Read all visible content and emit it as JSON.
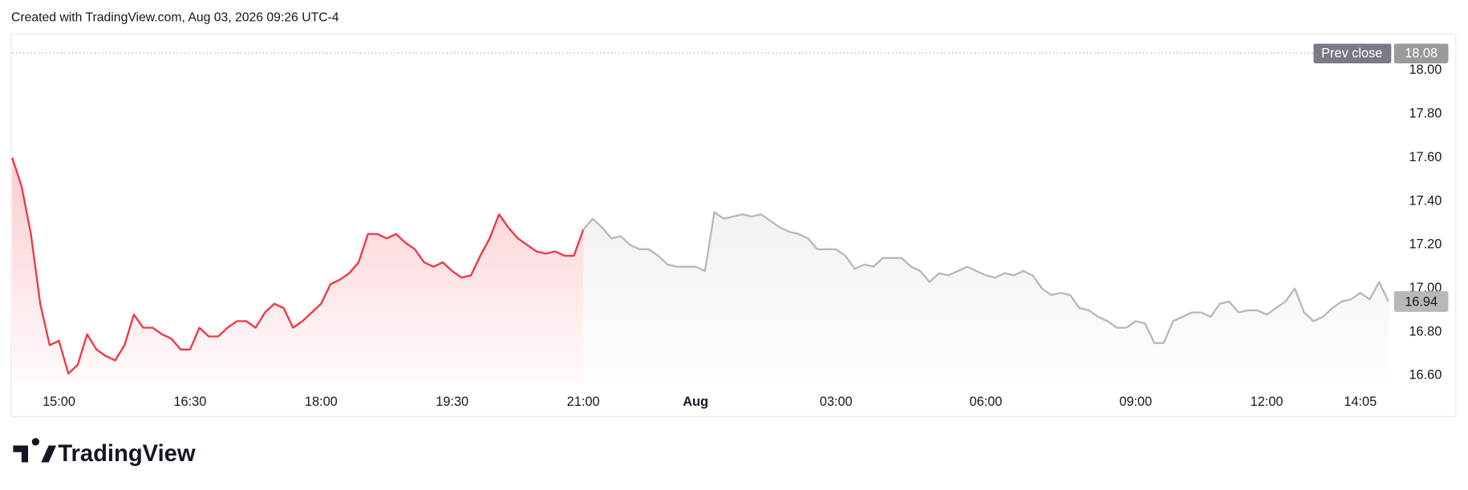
{
  "header": {
    "text": "Created with TradingView.com, Aug 03, 2026 09:26 UTC-4"
  },
  "footer": {
    "brand": "TradingView"
  },
  "chart_data": {
    "type": "line",
    "categories": [
      null,
      null,
      null,
      null,
      null,
      "15:00",
      null,
      null,
      null,
      null,
      null,
      null,
      null,
      null,
      null,
      null,
      null,
      null,
      null,
      "16:30",
      null,
      null,
      null,
      null,
      null,
      null,
      null,
      null,
      null,
      null,
      null,
      null,
      null,
      "18:00",
      null,
      null,
      null,
      null,
      null,
      null,
      null,
      null,
      null,
      null,
      null,
      null,
      null,
      "19:30",
      null,
      null,
      null,
      null,
      null,
      null,
      null,
      null,
      null,
      null,
      null,
      null,
      null,
      "21:00",
      null,
      null,
      null,
      null,
      null,
      null,
      null,
      null,
      null,
      null,
      null,
      "Aug",
      null,
      null,
      null,
      null,
      null,
      null,
      null,
      null,
      null,
      null,
      null,
      null,
      null,
      null,
      "03:00",
      null,
      null,
      null,
      null,
      null,
      null,
      null,
      null,
      null,
      null,
      null,
      null,
      null,
      null,
      null,
      "06:00",
      null,
      null,
      null,
      null,
      null,
      null,
      null,
      null,
      null,
      null,
      null,
      null,
      null,
      null,
      null,
      "09:00",
      null,
      null,
      null,
      null,
      null,
      null,
      null,
      null,
      null,
      null,
      null,
      null,
      null,
      "12:00",
      null,
      null,
      null,
      null,
      null,
      null,
      null,
      null,
      null,
      "14:05",
      null,
      null,
      null
    ],
    "series": [
      {
        "color": "#f23645",
        "values": [
          17.6,
          17.47,
          17.25,
          16.93,
          16.74,
          16.76,
          16.61,
          16.65,
          16.79,
          16.72,
          16.69,
          16.67,
          16.74,
          16.88,
          16.82,
          16.82,
          16.79,
          16.77,
          16.72,
          16.72,
          16.82,
          16.78,
          16.78,
          16.82,
          16.85,
          16.85,
          16.82,
          16.89,
          16.93,
          16.91,
          16.82,
          16.85,
          16.89,
          16.93,
          17.02,
          17.04,
          17.07,
          17.12,
          17.25,
          17.25,
          17.23,
          17.25,
          17.21,
          17.18,
          17.12,
          17.1,
          17.12,
          17.08,
          17.05,
          17.06,
          17.15,
          17.23,
          17.34,
          17.28,
          17.23,
          17.2,
          17.17,
          17.16,
          17.17,
          17.15,
          17.15,
          17.27,
          null,
          null,
          null,
          null,
          null,
          null,
          null,
          null,
          null,
          null,
          null,
          null,
          null,
          null,
          null,
          null,
          null,
          null,
          null,
          null,
          null,
          null,
          null,
          null,
          null,
          null,
          null,
          null,
          null,
          null,
          null,
          null,
          null,
          null,
          null,
          null,
          null,
          null,
          null,
          null,
          null,
          null,
          null,
          null,
          null,
          null,
          null,
          null,
          null,
          null,
          null,
          null,
          null,
          null,
          null,
          null,
          null,
          null,
          null,
          null,
          null,
          null,
          null,
          null,
          null,
          null,
          null,
          null,
          null,
          null,
          null,
          null,
          null,
          null,
          null,
          null,
          null,
          null,
          null,
          null,
          null,
          null,
          null,
          null,
          null,
          null
        ]
      },
      {
        "color": "#b8b8b8",
        "values": [
          null,
          null,
          null,
          null,
          null,
          null,
          null,
          null,
          null,
          null,
          null,
          null,
          null,
          null,
          null,
          null,
          null,
          null,
          null,
          null,
          null,
          null,
          null,
          null,
          null,
          null,
          null,
          null,
          null,
          null,
          null,
          null,
          null,
          null,
          null,
          null,
          null,
          null,
          null,
          null,
          null,
          null,
          null,
          null,
          null,
          null,
          null,
          null,
          null,
          null,
          null,
          null,
          null,
          null,
          null,
          null,
          null,
          null,
          null,
          null,
          null,
          17.27,
          17.32,
          17.28,
          17.23,
          17.24,
          17.2,
          17.18,
          17.18,
          17.15,
          17.11,
          17.1,
          17.1,
          17.1,
          17.08,
          17.35,
          17.32,
          17.33,
          17.34,
          17.33,
          17.34,
          17.31,
          17.28,
          17.26,
          17.25,
          17.23,
          17.18,
          17.18,
          17.18,
          17.15,
          17.09,
          17.11,
          17.1,
          17.14,
          17.14,
          17.14,
          17.1,
          17.08,
          17.03,
          17.07,
          17.06,
          17.08,
          17.1,
          17.08,
          17.06,
          17.05,
          17.07,
          17.06,
          17.08,
          17.06,
          17,
          16.97,
          16.98,
          16.97,
          16.91,
          16.9,
          16.87,
          16.85,
          16.82,
          16.82,
          16.85,
          16.84,
          16.75,
          16.75,
          16.85,
          16.87,
          16.89,
          16.89,
          16.87,
          16.93,
          16.94,
          16.89,
          16.9,
          16.9,
          16.88,
          16.91,
          16.94,
          17,
          16.89,
          16.85,
          16.87,
          16.91,
          16.94,
          16.95,
          16.98,
          16.95,
          17.03,
          16.94
        ]
      }
    ],
    "ylim": [
      16.52,
      18.1
    ],
    "yticks": [
      {
        "value": 16.6,
        "label": "16.60"
      },
      {
        "value": 16.8,
        "label": "16.80"
      },
      {
        "value": 17.0,
        "label": "17.00"
      },
      {
        "value": 17.2,
        "label": "17.20"
      },
      {
        "value": 17.4,
        "label": "17.40"
      },
      {
        "value": 17.6,
        "label": "17.60"
      },
      {
        "value": 17.8,
        "label": "17.80"
      },
      {
        "value": 18.0,
        "label": "18.00"
      }
    ],
    "prev_close": {
      "label": "Prev close",
      "value": 18.08
    },
    "grid": false
  }
}
